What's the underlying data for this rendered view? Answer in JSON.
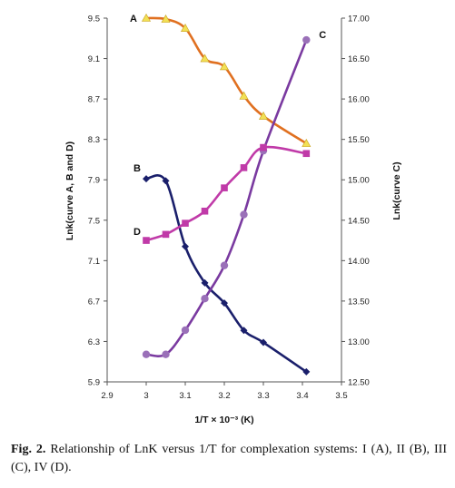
{
  "chart_data": {
    "type": "line",
    "xlabel": "1/T × 10⁻³ (K)",
    "ylabel_left": "Lnk(curve A, B and D)",
    "ylabel_right": "Lnk(curve C)",
    "xlim": [
      2.9,
      3.5
    ],
    "xticks": [
      "2.9",
      "3",
      "3.1",
      "3.2",
      "3.3",
      "3.4",
      "3.5"
    ],
    "ylim_left": [
      5.9,
      9.5
    ],
    "yticks_left": [
      "5.9",
      "6.3",
      "6.7",
      "7.1",
      "7.5",
      "7.9",
      "8.3",
      "8.7",
      "9.1",
      "9.5"
    ],
    "ylim_right": [
      12.5,
      17.0
    ],
    "yticks_right": [
      "12.50",
      "13.00",
      "13.50",
      "14.00",
      "14.50",
      "15.00",
      "15.50",
      "16.00",
      "16.50",
      "17.00"
    ],
    "grid": false,
    "series": [
      {
        "name": "A",
        "axis": "left",
        "color": "#e07020",
        "marker": "triangle",
        "marker_color": "#f2e055",
        "x": [
          3.0,
          3.05,
          3.1,
          3.15,
          3.2,
          3.25,
          3.3,
          3.41
        ],
        "y": [
          9.5,
          9.49,
          9.4,
          9.1,
          9.02,
          8.73,
          8.53,
          8.26
        ]
      },
      {
        "name": "B",
        "axis": "left",
        "color": "#1a1f6b",
        "marker": "diamond",
        "marker_color": "#1a1f6b",
        "x": [
          3.0,
          3.05,
          3.1,
          3.15,
          3.2,
          3.25,
          3.3,
          3.41
        ],
        "y": [
          7.91,
          7.89,
          7.24,
          6.88,
          6.68,
          6.41,
          6.29,
          6.0
        ]
      },
      {
        "name": "C",
        "axis": "right",
        "color": "#7a3aa0",
        "marker": "circle",
        "marker_color": "#9a70b8",
        "x": [
          3.0,
          3.05,
          3.1,
          3.15,
          3.2,
          3.25,
          3.3,
          3.41
        ],
        "y": [
          12.84,
          12.84,
          13.14,
          13.53,
          13.94,
          14.57,
          15.36,
          16.73
        ]
      },
      {
        "name": "D",
        "axis": "left",
        "color": "#c03aa8",
        "marker": "square",
        "marker_color": "#c03aa8",
        "x": [
          3.0,
          3.05,
          3.1,
          3.15,
          3.2,
          3.25,
          3.3,
          3.41
        ],
        "y": [
          7.3,
          7.36,
          7.47,
          7.59,
          7.82,
          8.02,
          8.22,
          8.16
        ]
      }
    ]
  },
  "caption": {
    "fig_label": "Fig. 2.",
    "text": " Relationship of LnK versus 1/T for complexation systems: I (A), II (B), III (C), IV (D)."
  }
}
